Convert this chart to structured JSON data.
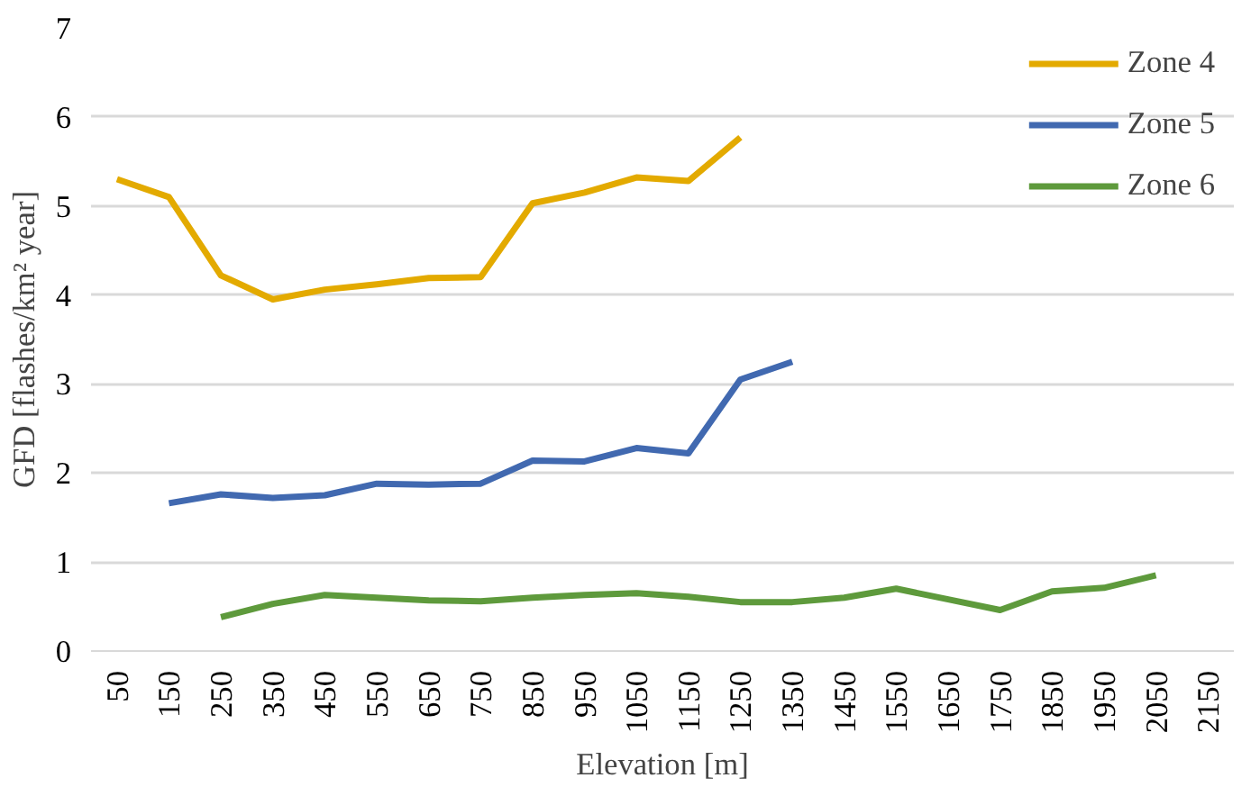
{
  "chart_data": {
    "type": "line",
    "xlabel": "Elevation [m]",
    "ylabel": "GFD [flashes/km² year]",
    "categories": [
      "50",
      "150",
      "250",
      "350",
      "450",
      "550",
      "650",
      "750",
      "850",
      "950",
      "1050",
      "1150",
      "1250",
      "1350",
      "1450",
      "1550",
      "1650",
      "1750",
      "1850",
      "1950",
      "2050",
      "2150"
    ],
    "series": [
      {
        "name": "Zone 4",
        "color": "#e3aa00",
        "values": [
          5.3,
          5.1,
          4.22,
          3.95,
          4.06,
          4.12,
          4.19,
          4.2,
          5.03,
          5.15,
          5.32,
          5.28,
          5.77,
          null,
          null,
          null,
          null,
          null,
          null,
          null,
          null,
          null
        ]
      },
      {
        "name": "Zone 5",
        "color": "#4169b0",
        "values": [
          null,
          1.66,
          1.76,
          1.72,
          1.75,
          1.88,
          1.87,
          1.88,
          2.14,
          2.13,
          2.28,
          2.22,
          3.05,
          3.25,
          null,
          null,
          null,
          null,
          null,
          null,
          null,
          null
        ]
      },
      {
        "name": "Zone 6",
        "color": "#5e9a3c",
        "values": [
          null,
          null,
          0.38,
          0.53,
          0.63,
          0.6,
          0.57,
          0.56,
          0.6,
          0.63,
          0.65,
          0.61,
          0.55,
          0.55,
          0.6,
          0.7,
          0.58,
          0.46,
          0.67,
          0.71,
          0.85,
          null
        ]
      }
    ],
    "ylim": [
      0,
      7
    ],
    "yticks": [
      0,
      1,
      2,
      3,
      4,
      5,
      6,
      7
    ],
    "grid": "y",
    "legend": "top right",
    "marker": "none",
    "line_style": "solid"
  }
}
